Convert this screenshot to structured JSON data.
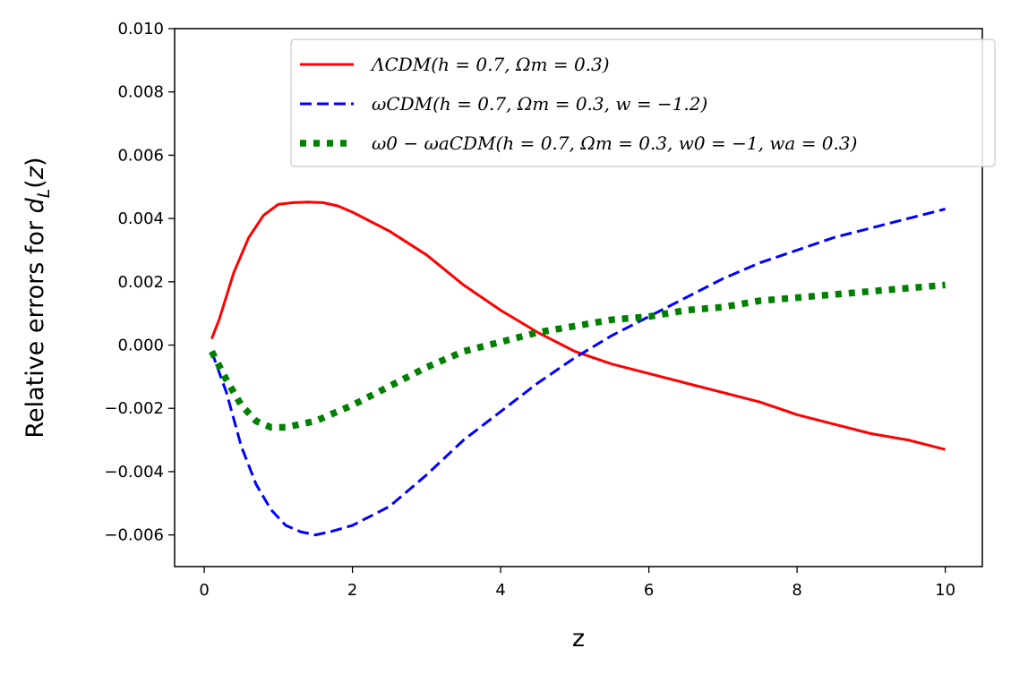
{
  "chart_data": {
    "type": "line",
    "xlabel": "z",
    "ylabel": "Relative errors for d_L(z)",
    "xlim": [
      -0.4,
      10.5
    ],
    "ylim": [
      -0.007,
      0.01
    ],
    "x_ticks": [
      0,
      2,
      4,
      6,
      8,
      10
    ],
    "x_tick_labels": [
      "0",
      "2",
      "4",
      "6",
      "8",
      "10"
    ],
    "y_ticks": [
      -0.006,
      -0.004,
      -0.002,
      0.0,
      0.002,
      0.004,
      0.006,
      0.008,
      0.01
    ],
    "y_tick_labels": [
      "−0.006",
      "−0.004",
      "−0.002",
      "0.000",
      "0.002",
      "0.004",
      "0.006",
      "0.008",
      "0.010"
    ],
    "grid": false,
    "legend_position": "top-right",
    "series": [
      {
        "name": "ΛCDM(h = 0.7, Ωm = 0.3)",
        "color": "#ff0000",
        "style": "solid",
        "x": [
          0.1,
          0.2,
          0.4,
          0.6,
          0.8,
          1.0,
          1.2,
          1.4,
          1.6,
          1.8,
          2.0,
          2.5,
          3.0,
          3.5,
          4.0,
          4.5,
          5.0,
          5.5,
          6.0,
          6.5,
          7.0,
          7.5,
          8.0,
          8.5,
          9.0,
          9.5,
          10.0
        ],
        "y": [
          0.0002,
          0.0008,
          0.0023,
          0.0034,
          0.0041,
          0.00445,
          0.0045,
          0.00452,
          0.0045,
          0.0044,
          0.0042,
          0.0036,
          0.00285,
          0.0019,
          0.0011,
          0.0004,
          -0.0002,
          -0.0006,
          -0.0009,
          -0.0012,
          -0.0015,
          -0.0018,
          -0.0022,
          -0.0025,
          -0.0028,
          -0.003,
          -0.0033
        ]
      },
      {
        "name": "ωCDM(h = 0.7, Ωm = 0.3, w = −1.2)",
        "color": "#0000ff",
        "style": "dashed",
        "x": [
          0.1,
          0.3,
          0.5,
          0.7,
          0.9,
          1.1,
          1.3,
          1.5,
          1.7,
          2.0,
          2.5,
          3.0,
          3.5,
          4.0,
          4.5,
          5.0,
          5.5,
          6.0,
          6.5,
          7.0,
          7.5,
          8.0,
          8.5,
          9.0,
          9.5,
          10.0
        ],
        "y": [
          -0.0002,
          -0.0015,
          -0.0032,
          -0.0044,
          -0.0052,
          -0.0057,
          -0.0059,
          -0.006,
          -0.0059,
          -0.0057,
          -0.0051,
          -0.0041,
          -0.003,
          -0.0021,
          -0.0012,
          -0.0004,
          0.0003,
          0.0009,
          0.0015,
          0.0021,
          0.0026,
          0.003,
          0.0034,
          0.0037,
          0.004,
          0.0043
        ]
      },
      {
        "name": "ω0 − ωaCDM(h = 0.7, Ωm = 0.3, w0 = −1, wa = 0.3)",
        "color": "#008000",
        "style": "dotted",
        "x": [
          0.1,
          0.3,
          0.5,
          0.7,
          0.9,
          1.1,
          1.3,
          1.5,
          2.0,
          2.5,
          3.0,
          3.5,
          4.0,
          4.5,
          5.0,
          5.5,
          6.0,
          6.5,
          7.0,
          7.5,
          8.0,
          8.5,
          9.0,
          9.5,
          10.0
        ],
        "y": [
          -0.0002,
          -0.0011,
          -0.0019,
          -0.0024,
          -0.0026,
          -0.0026,
          -0.0025,
          -0.0024,
          -0.0019,
          -0.0013,
          -0.0007,
          -0.0002,
          0.0001,
          0.0004,
          0.0006,
          0.0008,
          0.0009,
          0.0011,
          0.0012,
          0.0014,
          0.0015,
          0.0016,
          0.0017,
          0.0018,
          0.0019
        ]
      }
    ]
  }
}
